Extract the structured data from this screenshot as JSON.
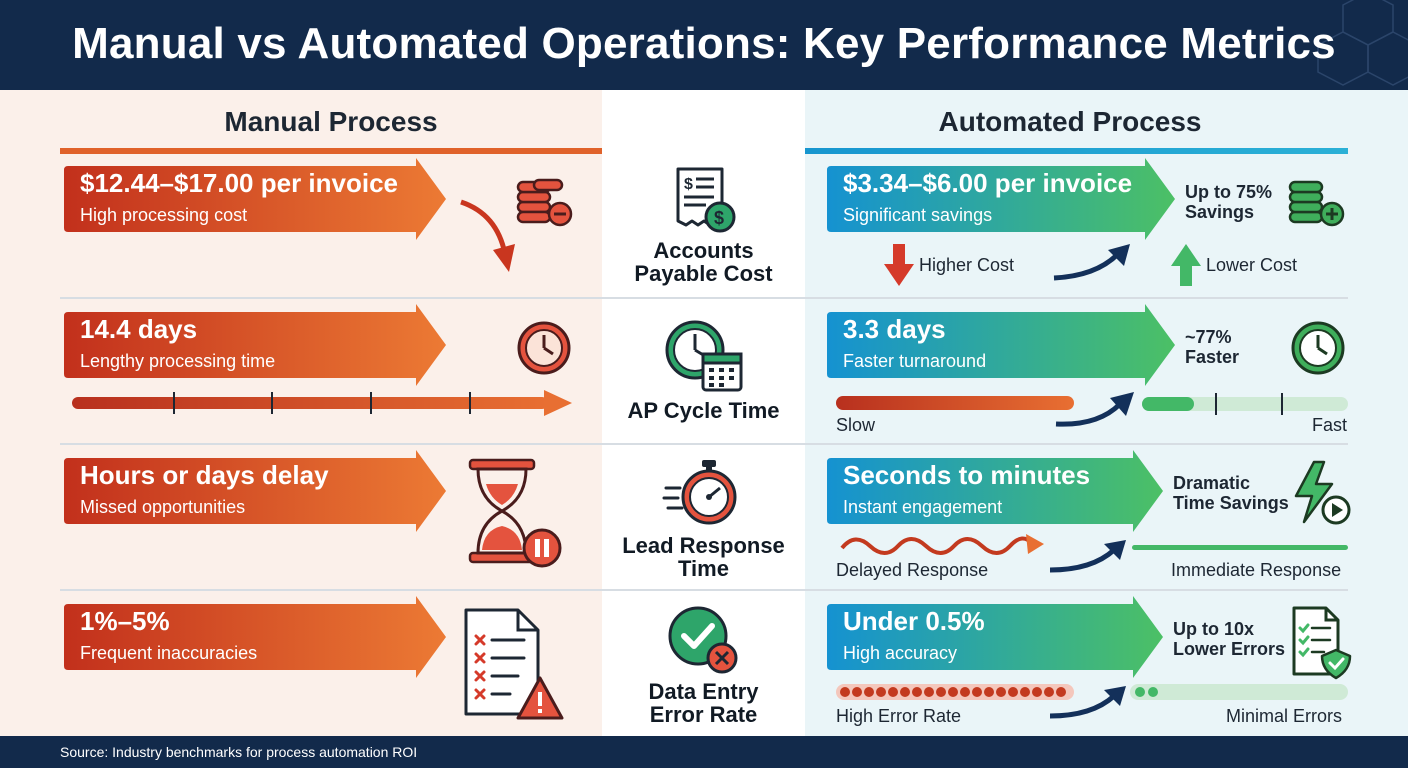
{
  "title": "Manual vs Automated Operations: Key Performance Metrics",
  "manual": {
    "heading": "Manual Process",
    "rows": [
      {
        "value": "$12.44–$17.00 per invoice",
        "sub": "High processing cost"
      },
      {
        "value": "14.4 days",
        "sub": "Lengthy processing time"
      },
      {
        "value": "Hours or days delay",
        "sub": "Missed opportunities"
      },
      {
        "value": "1%–5%",
        "sub": "Frequent inaccuracies"
      }
    ]
  },
  "automated": {
    "heading": "Automated Process",
    "rows": [
      {
        "value": "$3.34–$6.00 per invoice",
        "sub": "Significant savings",
        "note": "Up to 75%\nSavings"
      },
      {
        "value": "3.3 days",
        "sub": "Faster turnaround",
        "note": "~77%\nFaster"
      },
      {
        "value": "Seconds to minutes",
        "sub": "Instant engagement",
        "note": "Dramatic\nTime Savings"
      },
      {
        "value": "Under 0.5%",
        "sub": "High accuracy",
        "note": "Up to 10x\nLower Errors"
      }
    ]
  },
  "metrics": [
    "Accounts\nPayable Cost",
    "AP Cycle Time",
    "Lead Response\nTime",
    "Data Entry\nError Rate"
  ],
  "comparisons": {
    "cost": {
      "left": "Higher Cost",
      "right": "Lower Cost"
    },
    "cycle": {
      "left": "Slow",
      "right": "Fast"
    },
    "response": {
      "left": "Delayed Response",
      "right": "Immediate Response"
    },
    "error": {
      "left": "High Error Rate",
      "right": "Minimal Errors"
    }
  },
  "footer": "Source: Industry benchmarks for process automation ROI",
  "colors": {
    "header": "#122a4b",
    "manual_accent": "#e0622a",
    "manual_dark": "#c33a1f",
    "auto_blue": "#1796cf",
    "auto_green": "#43b867",
    "arrow_navy": "#13305a"
  }
}
